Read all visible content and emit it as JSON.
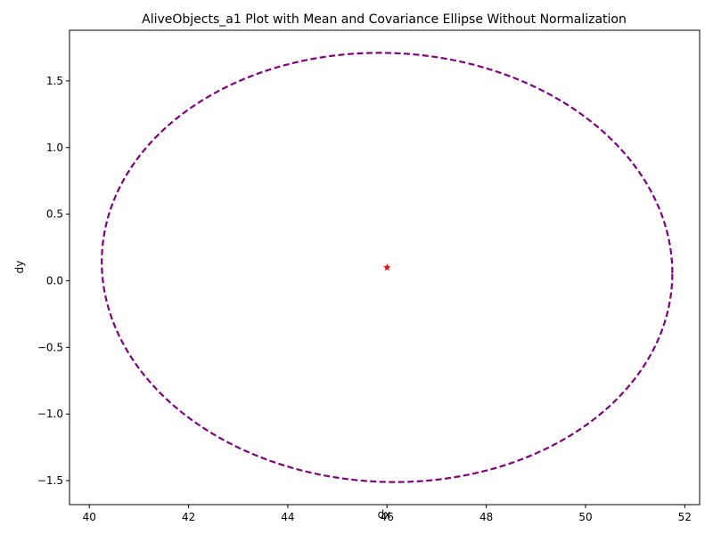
{
  "chart_data": {
    "type": "scatter",
    "title": "AliveObjects_a1 Plot with Mean and Covariance Ellipse Without Normalization",
    "xlabel": "dx",
    "ylabel": "dy",
    "xlim": [
      39.6,
      52.3
    ],
    "ylim": [
      -1.68,
      1.88
    ],
    "x_ticks": [
      40,
      42,
      44,
      46,
      48,
      50,
      52
    ],
    "y_ticks": [
      -1.5,
      -1.0,
      -0.5,
      0.0,
      0.5,
      1.0,
      1.5
    ],
    "x_tick_labels": [
      "40",
      "42",
      "44",
      "46",
      "48",
      "50",
      "52"
    ],
    "y_tick_labels": [
      "−1.5",
      "−1.0",
      "−0.5",
      "0.0",
      "0.5",
      "1.0",
      "1.5"
    ],
    "grid": false,
    "mean": {
      "x": 46.0,
      "y": 0.1,
      "color": "#ff0000",
      "marker": "star"
    },
    "ellipse": {
      "center": [
        46.0,
        0.1
      ],
      "semi_axis_x": 5.75,
      "semi_axis_y": 1.61,
      "tilt_dy_per_dx": -0.0074,
      "color": "#800080",
      "linestyle": "dashed"
    }
  }
}
